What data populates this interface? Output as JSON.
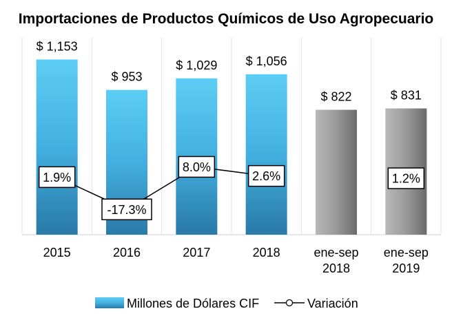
{
  "chart_data": {
    "type": "bar",
    "title": "Importaciones de Productos Químicos de Uso Agropecuario",
    "categories": [
      [
        "2015"
      ],
      [
        "2016"
      ],
      [
        "2017"
      ],
      [
        "2018"
      ],
      [
        "ene-sep",
        "2018"
      ],
      [
        "ene-sep",
        "2019"
      ]
    ],
    "series": [
      {
        "name": "Millones de Dólares CIF",
        "values": [
          1153,
          953,
          1029,
          1056,
          822,
          831
        ],
        "value_labels": [
          "$ 1,153",
          "$ 953",
          "$ 1,029",
          "$ 1,056",
          "$ 822",
          "$ 831"
        ],
        "colors": [
          "#3fb6e6",
          "#3fb6e6",
          "#3fb6e6",
          "#3fb6e6",
          "#8c8c8c",
          "#8c8c8c"
        ]
      },
      {
        "name": "Variación",
        "type": "line",
        "values": [
          1.9,
          -17.3,
          8.0,
          2.6,
          null,
          1.2
        ],
        "value_labels": [
          "1.9%",
          "-17.3%",
          "8.0%",
          "2.6%",
          "",
          "1.2%"
        ],
        "connected_to": [
          1,
          2,
          3
        ]
      }
    ],
    "ylim": [
      0,
      1300
    ],
    "grid": "vertical separators",
    "legend": "bottom",
    "colors": {
      "bar_light": "#5ccdf5",
      "bar_dark": "#2d7fa8",
      "gray_light": "#b0b0b0",
      "gray_dark": "#6e6e6e"
    }
  }
}
